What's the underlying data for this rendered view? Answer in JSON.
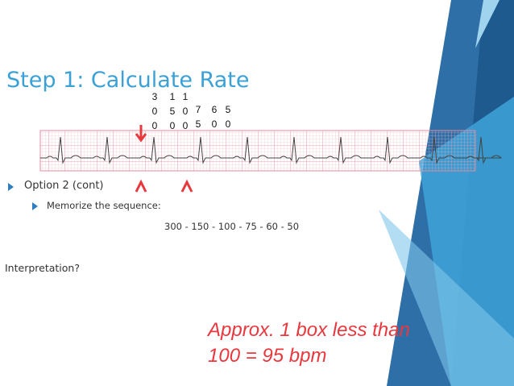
{
  "slide": {
    "title": "Step 1: Calculate Rate",
    "rate_columns": [
      "300",
      "150",
      "100",
      "75",
      "60",
      "50"
    ],
    "bullets": [
      "Option 2 (cont)",
      "Memorize the sequence:"
    ],
    "sequence": "300 - 150 - 100 - 75 - 60 - 50",
    "question": "Interpretation?",
    "answer": [
      "Approx. 1 box less than",
      "100 = 95 bpm"
    ]
  }
}
